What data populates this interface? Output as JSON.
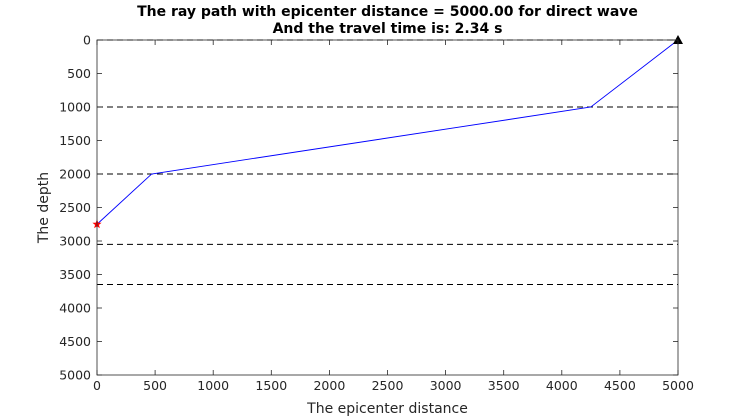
{
  "chart_data": {
    "type": "line",
    "title_line1": "The ray path with epicenter distance = 5000.00 for direct wave",
    "title_line2": "And the travel time is: 2.34 s",
    "xlabel": "The epicenter distance",
    "ylabel": "The depth",
    "xlim": [
      0,
      5000
    ],
    "ylim": [
      0,
      5000
    ],
    "y_reversed": true,
    "grid": false,
    "x_ticks": [
      "0",
      "500",
      "1000",
      "1500",
      "2000",
      "2500",
      "3000",
      "3500",
      "4000",
      "4500",
      "5000"
    ],
    "y_ticks": [
      "0",
      "500",
      "1000",
      "1500",
      "2000",
      "2500",
      "3000",
      "3500",
      "4000",
      "4500",
      "5000"
    ],
    "layer_boundaries": [
      0,
      1000,
      2000,
      3050,
      3650
    ],
    "ray_path": {
      "x": [
        0,
        470,
        4250,
        5000
      ],
      "y": [
        2750,
        2000,
        1000,
        0
      ],
      "color": "#0000ff"
    },
    "source": {
      "x": 0,
      "y": 2750,
      "color": "#ff0000",
      "marker": "star"
    },
    "receiver": {
      "x": 5000,
      "y": 0,
      "color": "#000000",
      "marker": "triangle"
    }
  }
}
